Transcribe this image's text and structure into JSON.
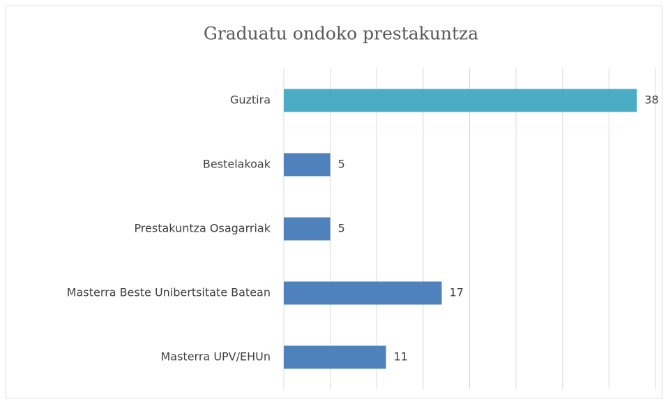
{
  "chart_data": {
    "type": "bar",
    "orientation": "horizontal",
    "title": "Graduatu ondoko prestakuntza",
    "categories": [
      "Guztira",
      "Bestelakoak",
      "Prestakuntza Osagarriak",
      "Masterra Beste Unibertsitate Batean",
      "Masterra UPV/EHUn"
    ],
    "values": [
      38,
      5,
      5,
      17,
      11
    ],
    "colors": [
      "#4bacc6",
      "#4f81bd",
      "#4f81bd",
      "#4f81bd",
      "#4f81bd"
    ],
    "xlim": [
      0,
      40
    ],
    "xticks": [
      0,
      5,
      10,
      15,
      20,
      25,
      30,
      35,
      40
    ],
    "grid": true
  }
}
